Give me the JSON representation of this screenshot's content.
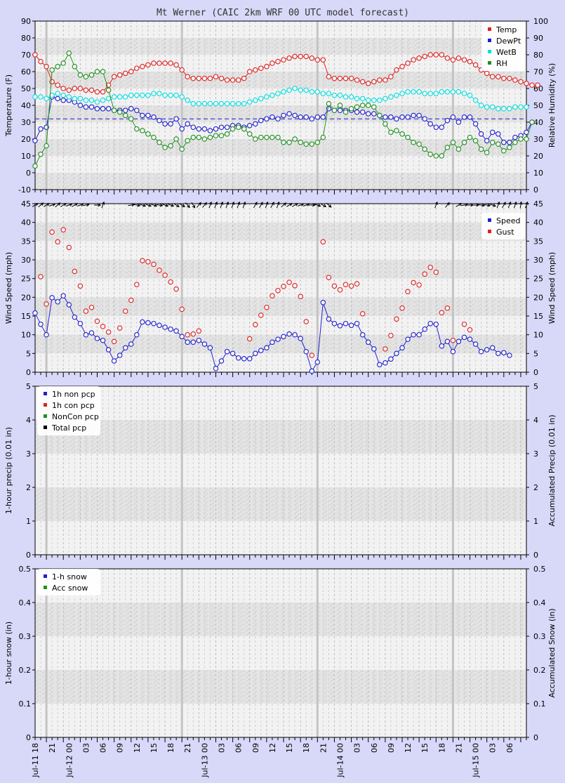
{
  "title": "Mt Werner (CAIC 2km WRF 00 UTC model forecast)",
  "x_labels": [
    "Jul-11 18",
    "21",
    "Jul-12 00",
    "03",
    "06",
    "09",
    "12",
    "15",
    "18",
    "21",
    "Jul-13 00",
    "03",
    "06",
    "09",
    "12",
    "15",
    "18",
    "21",
    "Jul-14 00",
    "03",
    "06",
    "09",
    "12",
    "15",
    "18",
    "21",
    "Jul-15 00",
    "03",
    "06"
  ],
  "wind_arrows": [
    240,
    230,
    240,
    250,
    230,
    240,
    250,
    240,
    250,
    260,
    null,
    270,
    200,
    null,
    null,
    null,
    null,
    260,
    280,
    290,
    290,
    290,
    280,
    290,
    290,
    300,
    300,
    320,
    330,
    220,
    220,
    200,
    200,
    200,
    200,
    200,
    200,
    200,
    null,
    210,
    210,
    200,
    210,
    200,
    230,
    240,
    240,
    250,
    250,
    270,
    290,
    300,
    310,
    null,
    null,
    null,
    null,
    null,
    null,
    null,
    null,
    null,
    null,
    null,
    null,
    null,
    null,
    null,
    null,
    null,
    null,
    200,
    null,
    220,
    null,
    240,
    260,
    270,
    270,
    280,
    280,
    290,
    200,
    210,
    200,
    200,
    190,
    200,
    200,
    190,
    190,
    190,
    200,
    200,
    210,
    200
  ],
  "chart_data": [
    {
      "type": "line",
      "title": "",
      "ylabel": "Temperature (F)",
      "ylabel_right": "Relative Humidity (%)",
      "ylim": [
        -10,
        90
      ],
      "ylim_right": [
        0,
        100
      ],
      "yticks": [
        "90",
        "80",
        "70",
        "60",
        "50",
        "40",
        "30",
        "20",
        "10",
        "0",
        "-10"
      ],
      "yticks_right": [
        "100",
        "90",
        "80",
        "70",
        "60",
        "50",
        "40",
        "30",
        "20",
        "10",
        "0"
      ],
      "reference_line": 32,
      "legend_position": "top-right",
      "series": [
        {
          "name": "Temp",
          "axis": "left",
          "color": "#e02020",
          "values": [
            70,
            66,
            63,
            54,
            52,
            50,
            49,
            50,
            50,
            49,
            49,
            48,
            48,
            52,
            57,
            58,
            59,
            60,
            62,
            63,
            64,
            65,
            65,
            65,
            65,
            64,
            61,
            57,
            56,
            56,
            56,
            56,
            57,
            56,
            55,
            55,
            55,
            56,
            60,
            61,
            62,
            63,
            65,
            66,
            67,
            68,
            69,
            69,
            69,
            68,
            67,
            67,
            57,
            56,
            56,
            56,
            56,
            55,
            54,
            53,
            54,
            55,
            55,
            57,
            61,
            63,
            65,
            67,
            68,
            69,
            70,
            70,
            70,
            68,
            67,
            68,
            67,
            66,
            64,
            61,
            59,
            57,
            57,
            56,
            56,
            55,
            54,
            53,
            52,
            52
          ]
        },
        {
          "name": "DewPt",
          "axis": "left",
          "color": "#2020d0",
          "values": [
            19,
            26,
            27,
            45,
            44,
            43,
            43,
            42,
            40,
            39,
            39,
            38,
            38,
            38,
            37,
            37,
            37,
            38,
            37,
            34,
            34,
            33,
            31,
            29,
            29,
            32,
            26,
            29,
            27,
            26,
            26,
            25,
            26,
            27,
            27,
            28,
            28,
            27,
            28,
            29,
            31,
            32,
            33,
            32,
            34,
            35,
            34,
            33,
            33,
            32,
            33,
            33,
            38,
            37,
            37,
            37,
            37,
            36,
            36,
            35,
            35,
            34,
            33,
            33,
            32,
            33,
            33,
            34,
            34,
            32,
            29,
            27,
            27,
            31,
            33,
            30,
            33,
            33,
            29,
            23,
            19,
            24,
            23,
            18,
            18,
            21,
            22,
            24,
            30
          ]
        },
        {
          "name": "WetB",
          "axis": "left",
          "color": "#00e0e0",
          "values": [
            45,
            45,
            44,
            46,
            47,
            46,
            45,
            44,
            44,
            43,
            43,
            42,
            43,
            44,
            45,
            45,
            45,
            46,
            46,
            46,
            46,
            47,
            47,
            46,
            46,
            46,
            45,
            43,
            41,
            41,
            41,
            41,
            41,
            41,
            41,
            41,
            41,
            41,
            42,
            43,
            44,
            45,
            46,
            47,
            48,
            49,
            50,
            49,
            49,
            48,
            48,
            47,
            47,
            46,
            46,
            45,
            45,
            44,
            44,
            43,
            43,
            43,
            44,
            45,
            46,
            47,
            48,
            48,
            48,
            47,
            47,
            47,
            48,
            48,
            48,
            48,
            47,
            46,
            43,
            40,
            39,
            39,
            38,
            38,
            38,
            39,
            39,
            39
          ]
        },
        {
          "name": "RH",
          "axis": "right",
          "color": "#209020",
          "values": [
            14,
            21,
            26,
            71,
            73,
            75,
            81,
            73,
            68,
            67,
            68,
            70,
            70,
            59,
            47,
            46,
            44,
            42,
            36,
            35,
            33,
            31,
            28,
            25,
            26,
            30,
            24,
            29,
            31,
            31,
            30,
            31,
            32,
            32,
            33,
            36,
            37,
            36,
            33,
            30,
            31,
            31,
            31,
            31,
            28,
            28,
            30,
            28,
            27,
            27,
            28,
            31,
            51,
            47,
            50,
            46,
            48,
            49,
            50,
            50,
            49,
            44,
            39,
            34,
            35,
            33,
            31,
            28,
            27,
            24,
            21,
            20,
            20,
            25,
            28,
            24,
            28,
            31,
            29,
            24,
            22,
            28,
            27,
            23,
            25,
            28,
            30,
            30,
            40
          ]
        }
      ]
    },
    {
      "type": "scatter",
      "title": "",
      "ylabel": "Wind Speed (mph)",
      "ylabel_right": "Wind Speed (mph)",
      "ylim": [
        0,
        45
      ],
      "ylim_right": [
        0,
        45
      ],
      "yticks": [
        "45",
        "40",
        "35",
        "30",
        "25",
        "20",
        "15",
        "10",
        "5",
        "0"
      ],
      "yticks_right": [
        "45",
        "40",
        "35",
        "30",
        "25",
        "20",
        "15",
        "10",
        "5",
        "0"
      ],
      "legend_position": "top-right",
      "series": [
        {
          "name": "Speed",
          "color": "#2020d0",
          "connected": true,
          "values": [
            15.8,
            12.8,
            10.0,
            19.9,
            18.8,
            20.4,
            18.0,
            14.7,
            13.0,
            10.0,
            10.5,
            9.0,
            8.5,
            6.0,
            3.0,
            4.5,
            6.5,
            7.5,
            10.0,
            13.4,
            13.2,
            13.0,
            12.5,
            12.0,
            11.5,
            11.0,
            9.5,
            8.0,
            8.0,
            8.5,
            7.5,
            6.5,
            1.0,
            3.0,
            5.5,
            5.0,
            3.8,
            3.6,
            3.6,
            5.0,
            5.8,
            6.5,
            8.0,
            8.8,
            9.5,
            10.2,
            10.0,
            9.0,
            5.5,
            0.3,
            2.7,
            18.6,
            14.2,
            13.0,
            12.4,
            13.0,
            12.5,
            13.0,
            10.0,
            8.0,
            6.2,
            2.0,
            2.5,
            3.5,
            5.0,
            6.5,
            8.8,
            10.0,
            10.0,
            11.5,
            13.0,
            12.8,
            7.0,
            8.2,
            5.5,
            8.2,
            9.3,
            8.8,
            7.5,
            5.5,
            6.0,
            6.5,
            5.0,
            5.2,
            4.5
          ]
        },
        {
          "name": "Gust",
          "color": "#e02020",
          "connected": false,
          "values": [
            null,
            25.5,
            18.2,
            37.4,
            34.8,
            38.0,
            33.3,
            26.9,
            23.0,
            16.3,
            17.3,
            13.6,
            12.2,
            10.7,
            8.2,
            11.8,
            16.3,
            19.2,
            23.4,
            29.8,
            29.5,
            28.8,
            27.2,
            25.9,
            24.1,
            22.2,
            16.8,
            10.0,
            10.2,
            11.0,
            null,
            null,
            null,
            null,
            null,
            null,
            null,
            null,
            8.9,
            12.7,
            15.2,
            17.3,
            20.4,
            21.8,
            22.9,
            24.0,
            23.1,
            20.2,
            13.5,
            4.5,
            null,
            34.8,
            25.3,
            23.0,
            22.0,
            23.4,
            23.0,
            23.6,
            15.6,
            null,
            null,
            null,
            6.2,
            9.8,
            14.2,
            17.1,
            21.5,
            23.9,
            23.3,
            26.2,
            28.0,
            26.7,
            15.9,
            17.1,
            8.5,
            null,
            12.8,
            11.3
          ]
        }
      ]
    },
    {
      "type": "line",
      "title": "",
      "ylabel": "1-hour precip (0.01 in)",
      "ylabel_right": "Accumulated Precip (0.01 in)",
      "ylim": [
        0,
        5
      ],
      "ylim_right": [
        0,
        5
      ],
      "yticks": [
        "5",
        "4",
        "3",
        "2",
        "1",
        "0"
      ],
      "yticks_right": [
        "5",
        "4",
        "3",
        "2",
        "1",
        "0"
      ],
      "legend_position": "top-left",
      "series": [
        {
          "name": "1h non pcp",
          "color": "#2020d0",
          "values": []
        },
        {
          "name": "1h con pcp",
          "color": "#e02020",
          "values": []
        },
        {
          "name": "NonCon pcp",
          "color": "#209020",
          "values": []
        },
        {
          "name": "Total pcp",
          "color": "#000000",
          "values": []
        }
      ]
    },
    {
      "type": "line",
      "title": "",
      "ylabel": "1-hour snow (in)",
      "ylabel_right": "Accumulated Snow (in)",
      "ylim": [
        0,
        0.5
      ],
      "ylim_right": [
        0,
        0.5
      ],
      "yticks": [
        "0.5",
        "0.4",
        "0.3",
        "0.2",
        "0.1",
        "0"
      ],
      "yticks_right": [
        "0.5",
        "0.4",
        "0.3",
        "0.2",
        "0.1",
        "0"
      ],
      "legend_position": "top-left",
      "series": [
        {
          "name": "1-h snow",
          "color": "#2020d0",
          "values": []
        },
        {
          "name": "Acc snow",
          "color": "#209020",
          "values": []
        }
      ]
    }
  ]
}
